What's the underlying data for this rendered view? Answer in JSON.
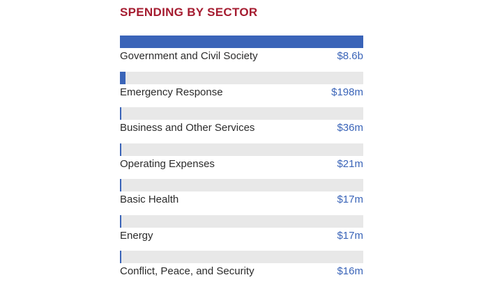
{
  "chart_data": {
    "type": "bar",
    "orientation": "horizontal",
    "title": "SPENDING BY SECTOR",
    "unit": "USD",
    "categories": [
      "Government and Civil Society",
      "Emergency Response",
      "Business and Other Services",
      "Operating Expenses",
      "Basic Health",
      "Energy",
      "Conflict, Peace, and Security"
    ],
    "values": [
      8600000000,
      198000000,
      36000000,
      21000000,
      17000000,
      17000000,
      16000000
    ],
    "value_labels": [
      "$8.6b",
      "$198m",
      "$36m",
      "$21m",
      "$17m",
      "$17m",
      "$16m"
    ],
    "xlim": [
      0,
      8600000000
    ],
    "colors": {
      "title": "#a51c30",
      "bar": "#3a64b8",
      "track": "#e8e8e8",
      "value_text": "#3a64b8"
    }
  }
}
